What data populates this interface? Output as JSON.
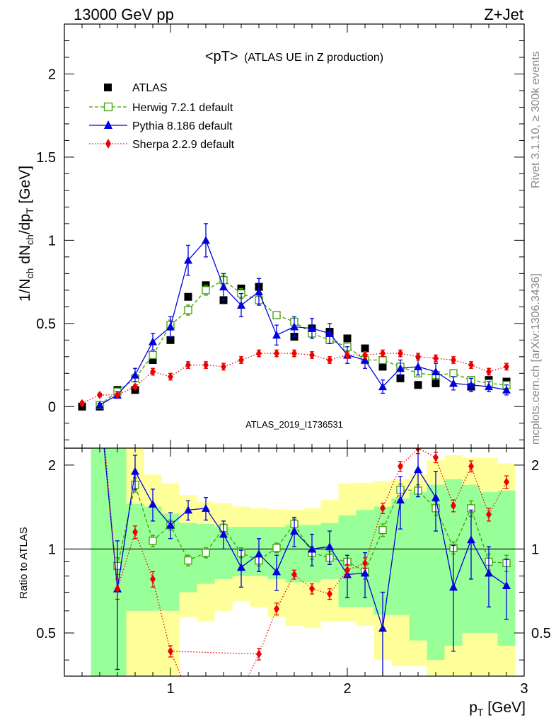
{
  "header": {
    "left": "13000 GeV pp",
    "right": "Z+Jet"
  },
  "side": {
    "rivet": "Rivet 3.1.10, ≥ 300k events",
    "mcplots": "mcplots.cern.ch [arXiv:1306.3436]"
  },
  "chart_data": [
    {
      "type": "scatter",
      "title": "<pT> (ATLAS UE in Z production)",
      "title_main": "<pT>",
      "title_sub": "(ATLAS UE in Z production)",
      "analysis_label": "ATLAS_2019_I1736531",
      "ylabel": "1/N_ch dN_ch/dp_T [GeV]",
      "ylabel_parts": [
        "1/N",
        "ch",
        " dN",
        "ch",
        "/dp",
        "T",
        " [GeV]"
      ],
      "xlim": [
        0.4,
        3.0
      ],
      "ylim": [
        -0.25,
        2.3
      ],
      "yticks_major": [
        0,
        0.5,
        1,
        1.5,
        2
      ],
      "ytick_labels": [
        "0",
        "0.5",
        "1",
        "1.5",
        "2"
      ],
      "legend_position": "top-left",
      "series": [
        {
          "name": "ATLAS",
          "color": "#000000",
          "marker": "filled-square",
          "x": [
            0.5,
            0.6,
            0.7,
            0.8,
            0.9,
            1.0,
            1.1,
            1.2,
            1.3,
            1.4,
            1.5,
            1.6,
            1.7,
            1.8,
            1.9,
            2.0,
            2.1,
            2.2,
            2.3,
            2.4,
            2.5,
            2.6,
            2.7,
            2.8,
            2.9
          ],
          "y": [
            0.0,
            0.0,
            0.1,
            0.1,
            0.28,
            0.4,
            0.66,
            0.73,
            0.64,
            0.71,
            0.72,
            0.55,
            0.42,
            0.47,
            0.45,
            0.41,
            0.35,
            0.24,
            0.17,
            0.13,
            0.14,
            0.2,
            0.12,
            0.16,
            0.15
          ]
        },
        {
          "name": "Herwig 7.2.1 default",
          "color": "#3f9f00",
          "marker": "open-square",
          "line": "dashed",
          "x": [
            0.6,
            0.7,
            0.8,
            0.9,
            1.0,
            1.1,
            1.2,
            1.3,
            1.4,
            1.5,
            1.6,
            1.7,
            1.8,
            1.9,
            2.0,
            2.1,
            2.2,
            2.3,
            2.4,
            2.5,
            2.6,
            2.7,
            2.8,
            2.9
          ],
          "y": [
            0.01,
            0.09,
            0.17,
            0.31,
            0.49,
            0.58,
            0.7,
            0.76,
            0.68,
            0.64,
            0.55,
            0.51,
            0.44,
            0.4,
            0.36,
            0.28,
            0.28,
            0.24,
            0.2,
            0.19,
            0.2,
            0.16,
            0.14,
            0.13
          ],
          "err": [
            0.01,
            0.01,
            0.02,
            0.02,
            0.03,
            0.03,
            0.03,
            0.03,
            0.03,
            0.03,
            0.02,
            0.02,
            0.02,
            0.02,
            0.02,
            0.02,
            0.02,
            0.02,
            0.02,
            0.02,
            0.01,
            0.01,
            0.01,
            0.01
          ]
        },
        {
          "name": "Pythia 8.186 default",
          "color": "#0000e0",
          "marker": "filled-triangle",
          "line": "solid",
          "x": [
            0.6,
            0.7,
            0.8,
            0.9,
            1.0,
            1.1,
            1.2,
            1.3,
            1.4,
            1.5,
            1.6,
            1.7,
            1.8,
            1.9,
            2.0,
            2.1,
            2.2,
            2.3,
            2.4,
            2.5,
            2.6,
            2.7,
            2.8,
            2.9
          ],
          "y": [
            0.01,
            0.07,
            0.19,
            0.39,
            0.48,
            0.88,
            1.0,
            0.72,
            0.61,
            0.69,
            0.43,
            0.48,
            0.47,
            0.44,
            0.31,
            0.28,
            0.12,
            0.23,
            0.24,
            0.21,
            0.14,
            0.13,
            0.12,
            0.1
          ],
          "err": [
            0.01,
            0.02,
            0.04,
            0.05,
            0.06,
            0.09,
            0.1,
            0.08,
            0.07,
            0.08,
            0.06,
            0.06,
            0.06,
            0.06,
            0.05,
            0.05,
            0.04,
            0.05,
            0.05,
            0.05,
            0.04,
            0.04,
            0.03,
            0.03
          ]
        },
        {
          "name": "Sherpa 2.2.9 default",
          "color": "#ee0000",
          "marker": "filled-diamond",
          "line": "dotted",
          "x": [
            0.5,
            0.6,
            0.7,
            0.8,
            0.9,
            1.0,
            1.1,
            1.2,
            1.3,
            1.4,
            1.5,
            1.6,
            1.7,
            1.8,
            1.9,
            2.0,
            2.1,
            2.2,
            2.3,
            2.4,
            2.5,
            2.6,
            2.7,
            2.8,
            2.9
          ],
          "y": [
            0.02,
            0.07,
            0.07,
            0.12,
            0.21,
            0.18,
            0.25,
            0.25,
            0.24,
            0.28,
            0.32,
            0.32,
            0.32,
            0.31,
            0.28,
            0.31,
            0.31,
            0.32,
            0.32,
            0.3,
            0.29,
            0.28,
            0.25,
            0.21,
            0.24
          ],
          "err": [
            0.01,
            0.01,
            0.01,
            0.01,
            0.02,
            0.02,
            0.02,
            0.02,
            0.02,
            0.02,
            0.02,
            0.02,
            0.02,
            0.02,
            0.02,
            0.02,
            0.02,
            0.02,
            0.02,
            0.02,
            0.02,
            0.02,
            0.02,
            0.02,
            0.02
          ]
        }
      ]
    },
    {
      "type": "line",
      "ylabel": "Ratio to ATLAS",
      "xlabel": "p_T [GeV]",
      "xlabel_parts": [
        "p",
        "T",
        " [GeV]"
      ],
      "xlim": [
        0.4,
        3.0
      ],
      "ylim": [
        0.35,
        2.3
      ],
      "xticks_major": [
        1,
        2,
        3
      ],
      "xtick_labels": [
        "1",
        "2",
        "3"
      ],
      "yticks_labeled": [
        0.5,
        1,
        2
      ],
      "ytick_labels": [
        "0.5",
        "1",
        "2"
      ],
      "reference_line": 1,
      "bands": {
        "x_edges": [
          0.55,
          0.65,
          0.75,
          0.85,
          0.95,
          1.05,
          1.15,
          1.25,
          1.35,
          1.45,
          1.55,
          1.65,
          1.75,
          1.85,
          1.95,
          2.05,
          2.15,
          2.25,
          2.35,
          2.45,
          2.55,
          2.65,
          2.75,
          2.85,
          2.95
        ],
        "yellow": {
          "color": "#ffff99",
          "lo": [
            0.35,
            0.35,
            0.35,
            0.35,
            0.35,
            0.57,
            0.55,
            0.6,
            0.65,
            0.62,
            0.57,
            0.53,
            0.52,
            0.55,
            0.55,
            0.53,
            0.4,
            0.38,
            0.38,
            0.35,
            0.35,
            0.35,
            0.35,
            0.35
          ],
          "hi": [
            2.3,
            2.3,
            2.3,
            1.85,
            1.72,
            1.56,
            1.48,
            1.46,
            1.42,
            1.4,
            1.39,
            1.38,
            1.4,
            1.5,
            1.72,
            1.73,
            1.75,
            1.78,
            1.85,
            2.08,
            2.17,
            2.12,
            2.12,
            2.03
          ]
        },
        "green": {
          "color": "#99ff99",
          "lo": [
            0.35,
            0.35,
            0.6,
            0.6,
            0.6,
            0.7,
            0.75,
            0.78,
            0.8,
            0.8,
            0.78,
            0.76,
            0.76,
            0.78,
            0.62,
            0.62,
            0.58,
            0.58,
            0.47,
            0.4,
            0.45,
            0.5,
            0.5,
            0.45
          ],
          "hi": [
            2.3,
            2.3,
            1.45,
            1.42,
            1.34,
            1.24,
            1.23,
            1.2,
            1.2,
            1.2,
            1.2,
            1.22,
            1.22,
            1.24,
            1.32,
            1.38,
            1.42,
            1.52,
            1.6,
            1.7,
            1.78,
            1.7,
            1.6,
            1.62
          ]
        }
      },
      "series": [
        {
          "name": "Herwig 7.2.1 default",
          "color": "#3f9f00",
          "x": [
            0.7,
            0.8,
            0.9,
            1.0,
            1.1,
            1.2,
            1.3,
            1.4,
            1.5,
            1.6,
            1.7,
            1.8,
            1.9,
            2.0,
            2.1,
            2.2,
            2.3,
            2.4,
            2.5,
            2.6,
            2.7,
            2.8,
            2.9
          ],
          "y": [
            0.87,
            1.7,
            1.07,
            1.22,
            0.91,
            0.97,
            1.19,
            0.97,
            0.91,
            1.01,
            1.23,
            0.97,
            0.93,
            0.9,
            0.83,
            1.17,
            1.63,
            1.62,
            1.4,
            1.01,
            1.4,
            0.9,
            0.89
          ],
          "err": [
            0.06,
            0.1,
            0.05,
            0.05,
            0.04,
            0.04,
            0.04,
            0.04,
            0.04,
            0.04,
            0.05,
            0.05,
            0.05,
            0.05,
            0.05,
            0.06,
            0.08,
            0.08,
            0.08,
            0.05,
            0.09,
            0.06,
            0.06
          ]
        },
        {
          "name": "Pythia 8.186 default",
          "color": "#0000e0",
          "x": [
            0.7,
            0.8,
            0.9,
            1.0,
            1.1,
            1.2,
            1.3,
            1.4,
            1.5,
            1.6,
            1.7,
            1.8,
            1.9,
            2.0,
            2.1,
            2.2,
            2.3,
            2.4,
            2.5,
            2.6,
            2.7,
            2.8,
            2.9
          ],
          "y": [
            0.72,
            1.9,
            1.45,
            1.22,
            1.38,
            1.4,
            1.13,
            0.86,
            0.96,
            0.83,
            1.16,
            1.0,
            1.02,
            0.81,
            0.82,
            0.52,
            1.5,
            1.93,
            1.53,
            0.73,
            1.08,
            0.82,
            0.74
          ],
          "err": [
            0.35,
            0.27,
            0.19,
            0.13,
            0.11,
            0.13,
            0.13,
            0.13,
            0.13,
            0.12,
            0.14,
            0.13,
            0.14,
            0.14,
            0.15,
            0.18,
            0.32,
            0.39,
            0.37,
            0.3,
            0.3,
            0.2,
            0.18
          ]
        },
        {
          "name": "Sherpa 2.2.9 default",
          "color": "#ee0000",
          "x": [
            0.7,
            0.8,
            0.9,
            1.0,
            1.5,
            1.6,
            1.7,
            1.8,
            1.9,
            2.0,
            2.1,
            2.2,
            2.3,
            2.4,
            2.5,
            2.6,
            2.7,
            2.8,
            2.9
          ],
          "y": [
            0.72,
            1.15,
            0.78,
            0.43,
            0.42,
            0.61,
            0.81,
            0.72,
            0.69,
            0.84,
            0.89,
            1.4,
            1.98,
            2.3,
            2.13,
            1.43,
            1.98,
            1.33,
            1.74
          ],
          "err": [
            0.06,
            0.06,
            0.05,
            0.02,
            0.02,
            0.03,
            0.03,
            0.03,
            0.03,
            0.04,
            0.04,
            0.06,
            0.08,
            0.1,
            0.09,
            0.07,
            0.09,
            0.07,
            0.09
          ]
        }
      ]
    }
  ]
}
